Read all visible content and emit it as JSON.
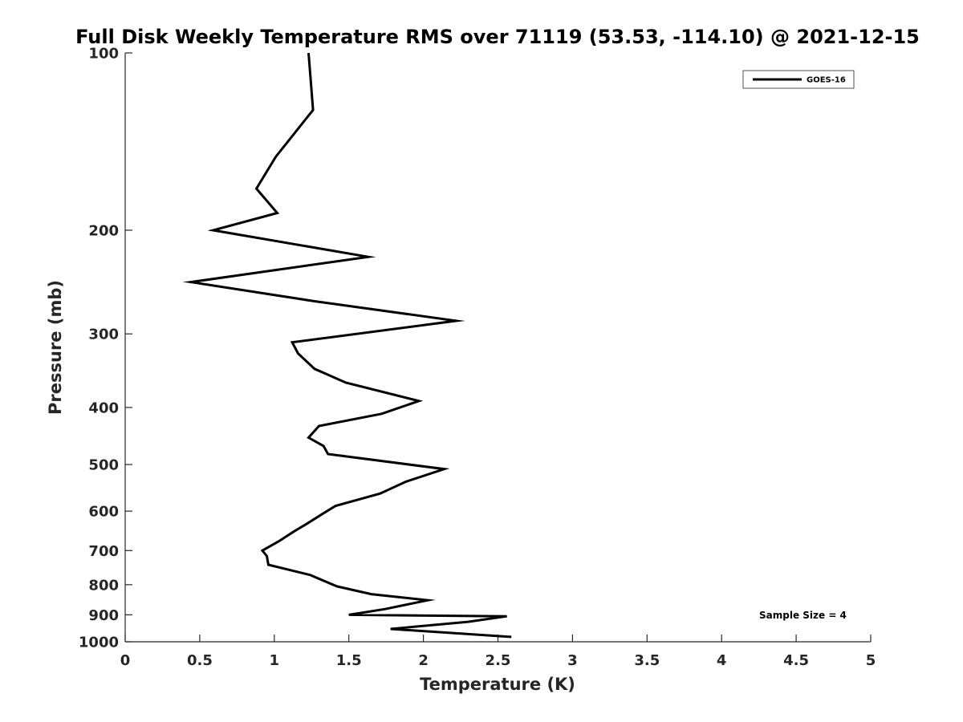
{
  "chart_data": {
    "type": "line",
    "title": "Full Disk Weekly Temperature RMS over 71119 (53.53, -114.10) @ 2021-12-15",
    "xlabel": "Temperature (K)",
    "ylabel": "Pressure (mb)",
    "xlim": [
      0,
      5
    ],
    "ylim": [
      1000,
      100
    ],
    "yscale": "log",
    "ydirection": "reverse",
    "grid": false,
    "legend_position": "top-right",
    "xticks": [
      "0",
      "0.5",
      "1",
      "1.5",
      "2",
      "2.5",
      "3",
      "3.5",
      "4",
      "4.5",
      "5"
    ],
    "xtick_values": [
      0,
      0.5,
      1,
      1.5,
      2,
      2.5,
      3,
      3.5,
      4,
      4.5,
      5
    ],
    "yticks": [
      "100",
      "200",
      "300",
      "400",
      "500",
      "600",
      "700",
      "800",
      "900",
      "1000"
    ],
    "ytick_values": [
      100,
      200,
      300,
      400,
      500,
      600,
      700,
      800,
      900,
      1000
    ],
    "series": [
      {
        "name": "GOES-16",
        "color": "#000000",
        "x": [
          1.23,
          1.26,
          1.01,
          0.88,
          1.02,
          0.59,
          1.63,
          0.44,
          1.27,
          2.22,
          1.12,
          1.16,
          1.27,
          1.48,
          1.97,
          1.72,
          1.3,
          1.23,
          1.33,
          1.36,
          2.14,
          1.88,
          1.71,
          1.41,
          1.33,
          1.22,
          1.13,
          1.03,
          0.92,
          0.95,
          0.96,
          1.24,
          1.42,
          1.65,
          2.03,
          1.74,
          1.5,
          2.56,
          2.3,
          1.78,
          2.59
        ],
        "y": [
          100,
          125,
          150,
          170,
          187,
          200,
          222,
          245,
          264,
          285,
          310,
          324,
          344,
          363,
          390,
          410,
          430,
          450,
          465,
          480,
          509,
          535,
          560,
          588,
          605,
          630,
          650,
          675,
          700,
          715,
          740,
          770,
          805,
          830,
          850,
          880,
          900,
          905,
          925,
          951,
          981
        ]
      }
    ],
    "annotations": [
      "Sample Size = 4"
    ]
  }
}
